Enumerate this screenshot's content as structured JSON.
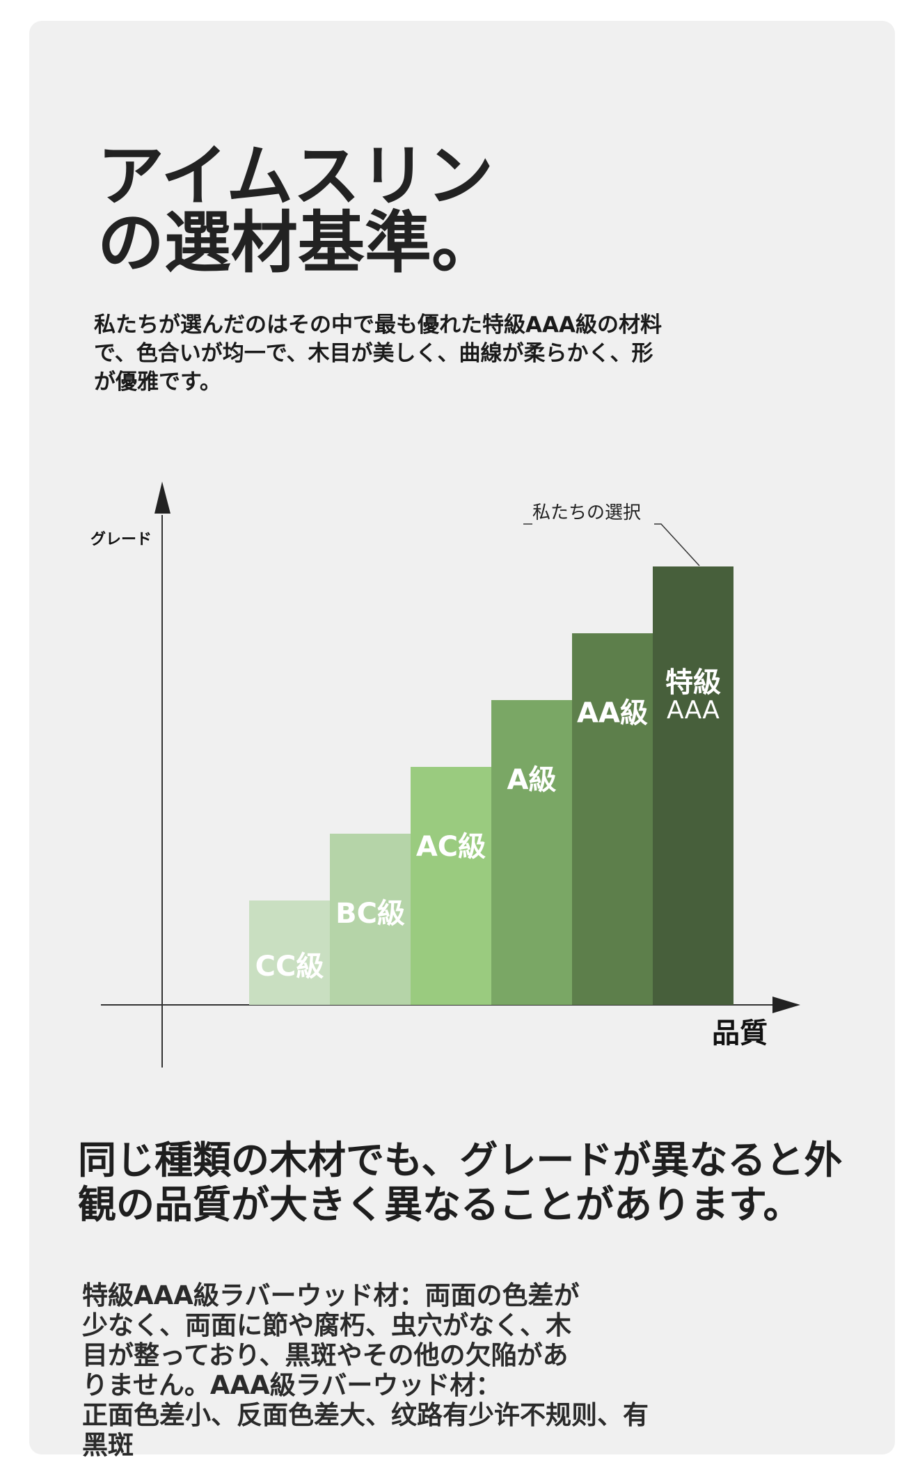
{
  "page": {
    "title": "アイムスリン\nの選材基準。",
    "intro": "私たちが選んだのはその中で最も優れた特級AAA級の材料\nで、色合いが均一で、木目が美しく、曲線が柔らかく、形\nが優雅です。",
    "headline": "同じ種類の木材でも、グレードが異なると外\n観の品質が大きく異なることがあります。",
    "description": "特級AAA級ラバーウッド材：両面の色差が\n少なく、両面に節や腐朽、虫穴がなく、木\n目が整っており、黒斑やその他の欠陥があ\nりません。AAA級ラバーウッド材：\n正面色差小、反面色差大、纹路有少许不规则、有黑斑"
  },
  "chart_data": {
    "type": "bar",
    "ylabel": "グレード",
    "xlabel": "品質",
    "annotation": "私たちの選択",
    "annotation_target": "特級AAA",
    "categories": [
      "CC級",
      "BC級",
      "AC級",
      "A級",
      "AA級",
      "特級AAA"
    ],
    "values": [
      1,
      2,
      3,
      4,
      5,
      6
    ],
    "bar_label_lines": [
      [
        "CC級"
      ],
      [
        "BC級"
      ],
      [
        "AC級"
      ],
      [
        "A級"
      ],
      [
        "AA級"
      ],
      [
        "特級",
        "AAA"
      ]
    ],
    "colors": [
      "#c9dfc1",
      "#b5d4a8",
      "#9acb7f",
      "#7aa765",
      "#5d7f4b",
      "#475f3b"
    ],
    "grid": false,
    "legend": "none"
  }
}
